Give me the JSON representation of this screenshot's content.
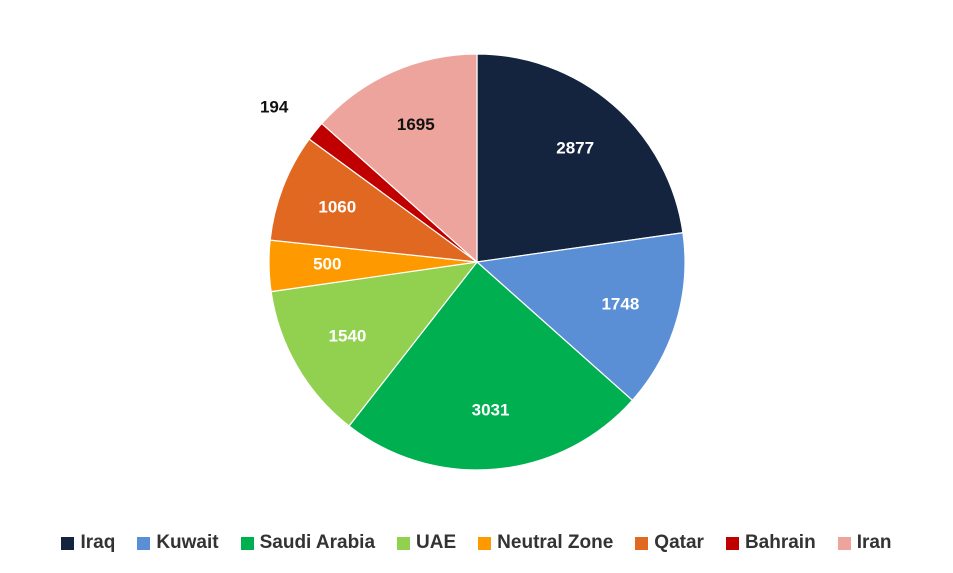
{
  "chart_data": {
    "type": "pie",
    "categories": [
      "Iraq",
      "Kuwait",
      "Saudi Arabia",
      "UAE",
      "Neutral Zone",
      "Qatar",
      "Bahrain",
      "Iran"
    ],
    "values": [
      2877,
      1748,
      3031,
      1540,
      500,
      1060,
      194,
      1695
    ],
    "colors": [
      "#14243f",
      "#5a8fd6",
      "#00b050",
      "#92d050",
      "#ff9900",
      "#e06820",
      "#c00000",
      "#eda49d"
    ],
    "label_colors": [
      "#ffffff",
      "#ffffff",
      "#ffffff",
      "#ffffff",
      "#ffffff",
      "#ffffff",
      "#111111",
      "#111111"
    ],
    "start_angle_deg": 0,
    "direction": "clockwise",
    "legend_position": "bottom",
    "title": "",
    "xlabel": "",
    "ylabel": ""
  }
}
